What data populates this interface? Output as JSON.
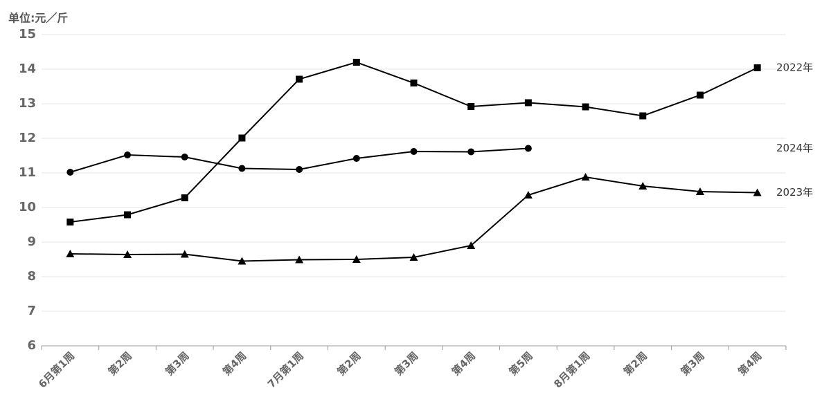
{
  "chart_data": {
    "type": "line",
    "y_label": "单位:元／斤",
    "categories": [
      "6月第1周",
      "第2周",
      "第3周",
      "第4周",
      "7月第1周",
      "第2周",
      "第3周",
      "第4周",
      "第5周",
      "8月第1周",
      "第2周",
      "第3周",
      "第4周"
    ],
    "series": [
      {
        "name": "2022年",
        "color": "#000000",
        "marker": "square",
        "values": [
          9.58,
          9.79,
          10.28,
          12.01,
          13.71,
          14.2,
          13.6,
          12.92,
          13.03,
          12.91,
          12.65,
          13.25,
          14.04
        ]
      },
      {
        "name": "2023年",
        "color": "#000000",
        "marker": "triangle",
        "values": [
          8.66,
          8.64,
          8.65,
          8.45,
          8.49,
          8.5,
          8.56,
          8.9,
          10.36,
          10.88,
          10.62,
          10.46,
          10.43
        ]
      },
      {
        "name": "2024年",
        "color": "#000000",
        "marker": "circle",
        "values": [
          11.02,
          11.52,
          11.46,
          11.13,
          11.1,
          11.42,
          11.62,
          11.61,
          11.71,
          null,
          null,
          null,
          null
        ]
      }
    ],
    "ylim": [
      6,
      15
    ],
    "yticks": [
      6,
      7,
      8,
      9,
      10,
      11,
      12,
      13,
      14,
      15
    ],
    "grid": true
  }
}
